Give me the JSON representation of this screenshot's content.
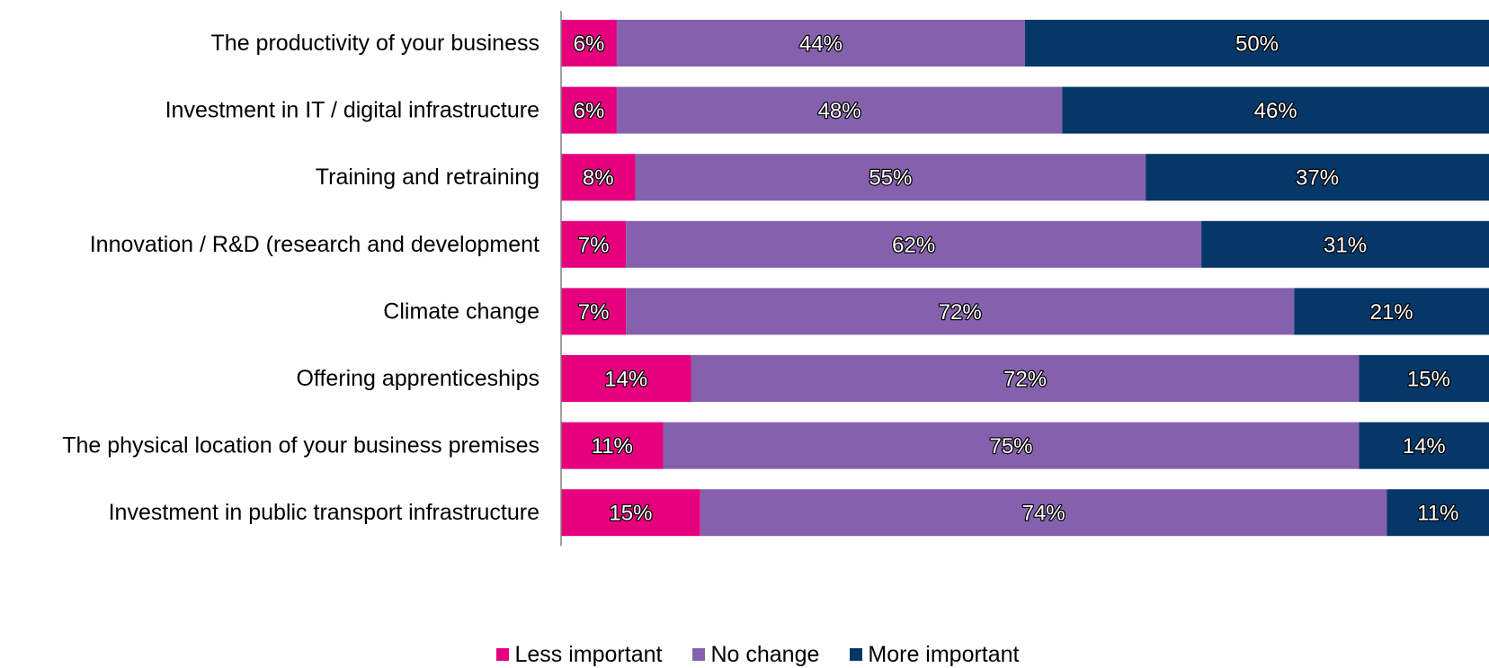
{
  "chart_data": {
    "type": "bar",
    "orientation": "horizontal",
    "stacked": true,
    "categories": [
      "The productivity of your business",
      "Investment in IT / digital infrastructure",
      "Training and retraining",
      "Innovation / R&D (research and development",
      "Climate change",
      "Offering apprenticeships",
      "The physical location of your business premises",
      "Investment in public transport infrastructure"
    ],
    "series": [
      {
        "name": "Less important",
        "color": "#E6007E",
        "values": [
          6,
          6,
          8,
          7,
          7,
          14,
          11,
          15
        ]
      },
      {
        "name": "No change",
        "color": "#8561AD",
        "values": [
          44,
          48,
          55,
          62,
          72,
          72,
          75,
          74
        ]
      },
      {
        "name": "More important",
        "color": "#053769",
        "values": [
          50,
          46,
          37,
          31,
          21,
          15,
          14,
          11
        ]
      }
    ],
    "data_labels": [
      [
        "6%",
        "44%",
        "50%"
      ],
      [
        "6%",
        "48%",
        "46%"
      ],
      [
        "8%",
        "55%",
        "37%"
      ],
      [
        "7%",
        "62%",
        "31%"
      ],
      [
        "7%",
        "72%",
        "21%"
      ],
      [
        "14%",
        "72%",
        "15%"
      ],
      [
        "11%",
        "75%",
        "14%"
      ],
      [
        "15%",
        "74%",
        "11%"
      ]
    ],
    "legend_position": "bottom",
    "grid": false
  }
}
